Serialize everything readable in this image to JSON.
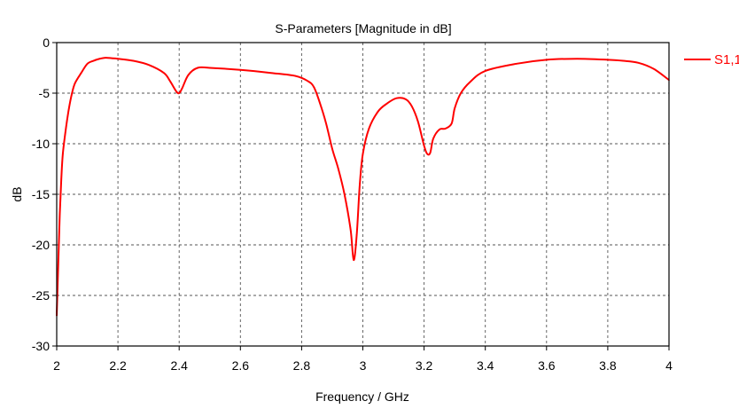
{
  "chart_data": {
    "type": "line",
    "title": "S-Parameters [Magnitude in dB]",
    "xlabel": "Frequency / GHz",
    "ylabel": "dB",
    "xlim": [
      2,
      4
    ],
    "ylim": [
      -30,
      0
    ],
    "x_ticks": [
      "2",
      "2.2",
      "2.4",
      "2.6",
      "2.8",
      "3",
      "3.2",
      "3.4",
      "3.6",
      "3.8",
      "4"
    ],
    "y_ticks": [
      "0",
      "-5",
      "-10",
      "-15",
      "-20",
      "-25",
      "-30"
    ],
    "grid": "dashed",
    "legend_position": "right",
    "series": [
      {
        "name": "S1,1",
        "color": "#ff0000",
        "x": [
          2.0,
          2.005,
          2.01,
          2.015,
          2.02,
          2.03,
          2.04,
          2.05,
          2.06,
          2.08,
          2.1,
          2.12,
          2.14,
          2.16,
          2.18,
          2.2,
          2.25,
          2.3,
          2.35,
          2.37,
          2.39,
          2.4,
          2.41,
          2.43,
          2.46,
          2.5,
          2.6,
          2.7,
          2.78,
          2.82,
          2.84,
          2.86,
          2.88,
          2.9,
          2.92,
          2.94,
          2.96,
          2.97,
          2.98,
          2.99,
          3.0,
          3.02,
          3.05,
          3.08,
          3.11,
          3.14,
          3.16,
          3.18,
          3.2,
          3.21,
          3.22,
          3.23,
          3.25,
          3.27,
          3.29,
          3.3,
          3.32,
          3.35,
          3.4,
          3.5,
          3.6,
          3.7,
          3.8,
          3.85,
          3.9,
          3.95,
          4.0
        ],
        "y": [
          -27,
          -22,
          -17,
          -13.5,
          -11,
          -8.5,
          -6.5,
          -5,
          -4,
          -3,
          -2.1,
          -1.8,
          -1.6,
          -1.5,
          -1.55,
          -1.6,
          -1.8,
          -2.2,
          -3.0,
          -3.8,
          -4.8,
          -5.0,
          -4.5,
          -3.2,
          -2.5,
          -2.5,
          -2.7,
          -3.0,
          -3.3,
          -3.8,
          -4.4,
          -6,
          -8,
          -10.5,
          -12.5,
          -15,
          -18.5,
          -21.5,
          -19,
          -14,
          -11,
          -8.5,
          -6.8,
          -6.0,
          -5.5,
          -5.6,
          -6.3,
          -7.8,
          -10.2,
          -11.0,
          -10.9,
          -9.5,
          -8.6,
          -8.5,
          -8.0,
          -6.5,
          -5.0,
          -3.9,
          -2.8,
          -2.1,
          -1.7,
          -1.6,
          -1.7,
          -1.8,
          -2.0,
          -2.6,
          -3.7
        ]
      }
    ]
  }
}
